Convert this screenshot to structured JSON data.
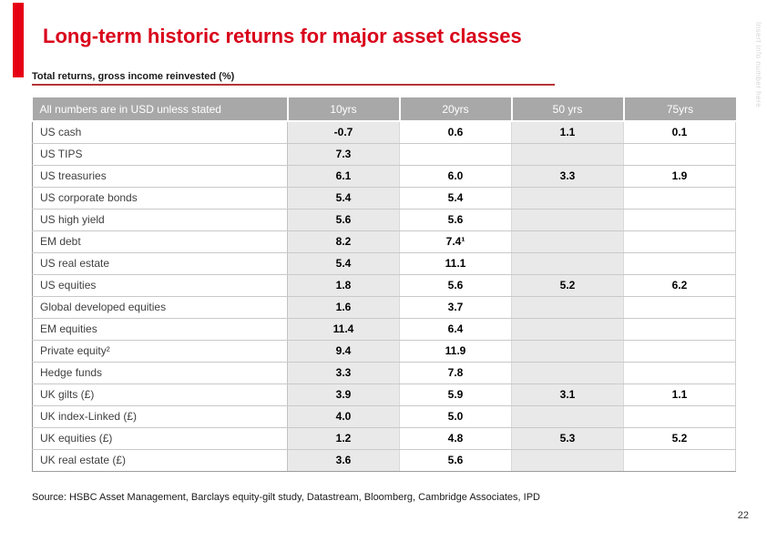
{
  "slide": {
    "title": "Long-term historic returns for major asset classes",
    "subtitle": "Total returns, gross income reinvested (%)",
    "source": "Source: HSBC Asset Management, Barclays equity-gilt study, Datastream, Bloomberg, Cambridge Associates, IPD",
    "page_number": "22",
    "side_note": "Insert info number here"
  },
  "colors": {
    "accent_red": "#e60014",
    "title_red": "#d9001a",
    "underline_red": "#b73535",
    "header_gray": "#a8a8a8",
    "shaded_column_gray": "#e9e9e9"
  },
  "chart_data": {
    "type": "table",
    "title": "Long-term historic returns for major asset classes",
    "subtitle": "Total returns, gross income reinvested (%)",
    "headers": [
      "All numbers are in USD unless stated",
      "10yrs",
      "20yrs",
      "50 yrs",
      "75yrs"
    ],
    "shaded_value_columns": [
      0,
      2
    ],
    "rows": [
      {
        "label": "US cash",
        "values": [
          "-0.7",
          "0.6",
          "1.1",
          "0.1"
        ]
      },
      {
        "label": "US TIPS",
        "values": [
          "7.3",
          "",
          "",
          ""
        ]
      },
      {
        "label": "US treasuries",
        "values": [
          "6.1",
          "6.0",
          "3.3",
          "1.9"
        ]
      },
      {
        "label": "US corporate bonds",
        "values": [
          "5.4",
          "5.4",
          "",
          ""
        ]
      },
      {
        "label": "US high yield",
        "values": [
          "5.6",
          "5.6",
          "",
          ""
        ]
      },
      {
        "label": "EM debt",
        "values": [
          "8.2",
          "7.4¹",
          "",
          ""
        ]
      },
      {
        "label": "US real estate",
        "values": [
          "5.4",
          "11.1",
          "",
          ""
        ]
      },
      {
        "label": "US equities",
        "values": [
          "1.8",
          "5.6",
          "5.2",
          "6.2"
        ]
      },
      {
        "label": "Global developed equities",
        "values": [
          "1.6",
          "3.7",
          "",
          ""
        ]
      },
      {
        "label": "EM equities",
        "values": [
          "11.4",
          "6.4",
          "",
          ""
        ]
      },
      {
        "label": "Private equity²",
        "values": [
          "9.4",
          "11.9",
          "",
          ""
        ]
      },
      {
        "label": "Hedge funds",
        "values": [
          "3.3",
          "7.8",
          "",
          ""
        ]
      },
      {
        "label": "UK gilts (£)",
        "values": [
          "3.9",
          "5.9",
          "3.1",
          "1.1"
        ]
      },
      {
        "label": "UK index-Linked (£)",
        "values": [
          "4.0",
          "5.0",
          "",
          ""
        ]
      },
      {
        "label": "UK equities (£)",
        "values": [
          "1.2",
          "4.8",
          "5.3",
          "5.2"
        ]
      },
      {
        "label": "UK real estate (£)",
        "values": [
          "3.6",
          "5.6",
          "",
          ""
        ]
      }
    ]
  }
}
